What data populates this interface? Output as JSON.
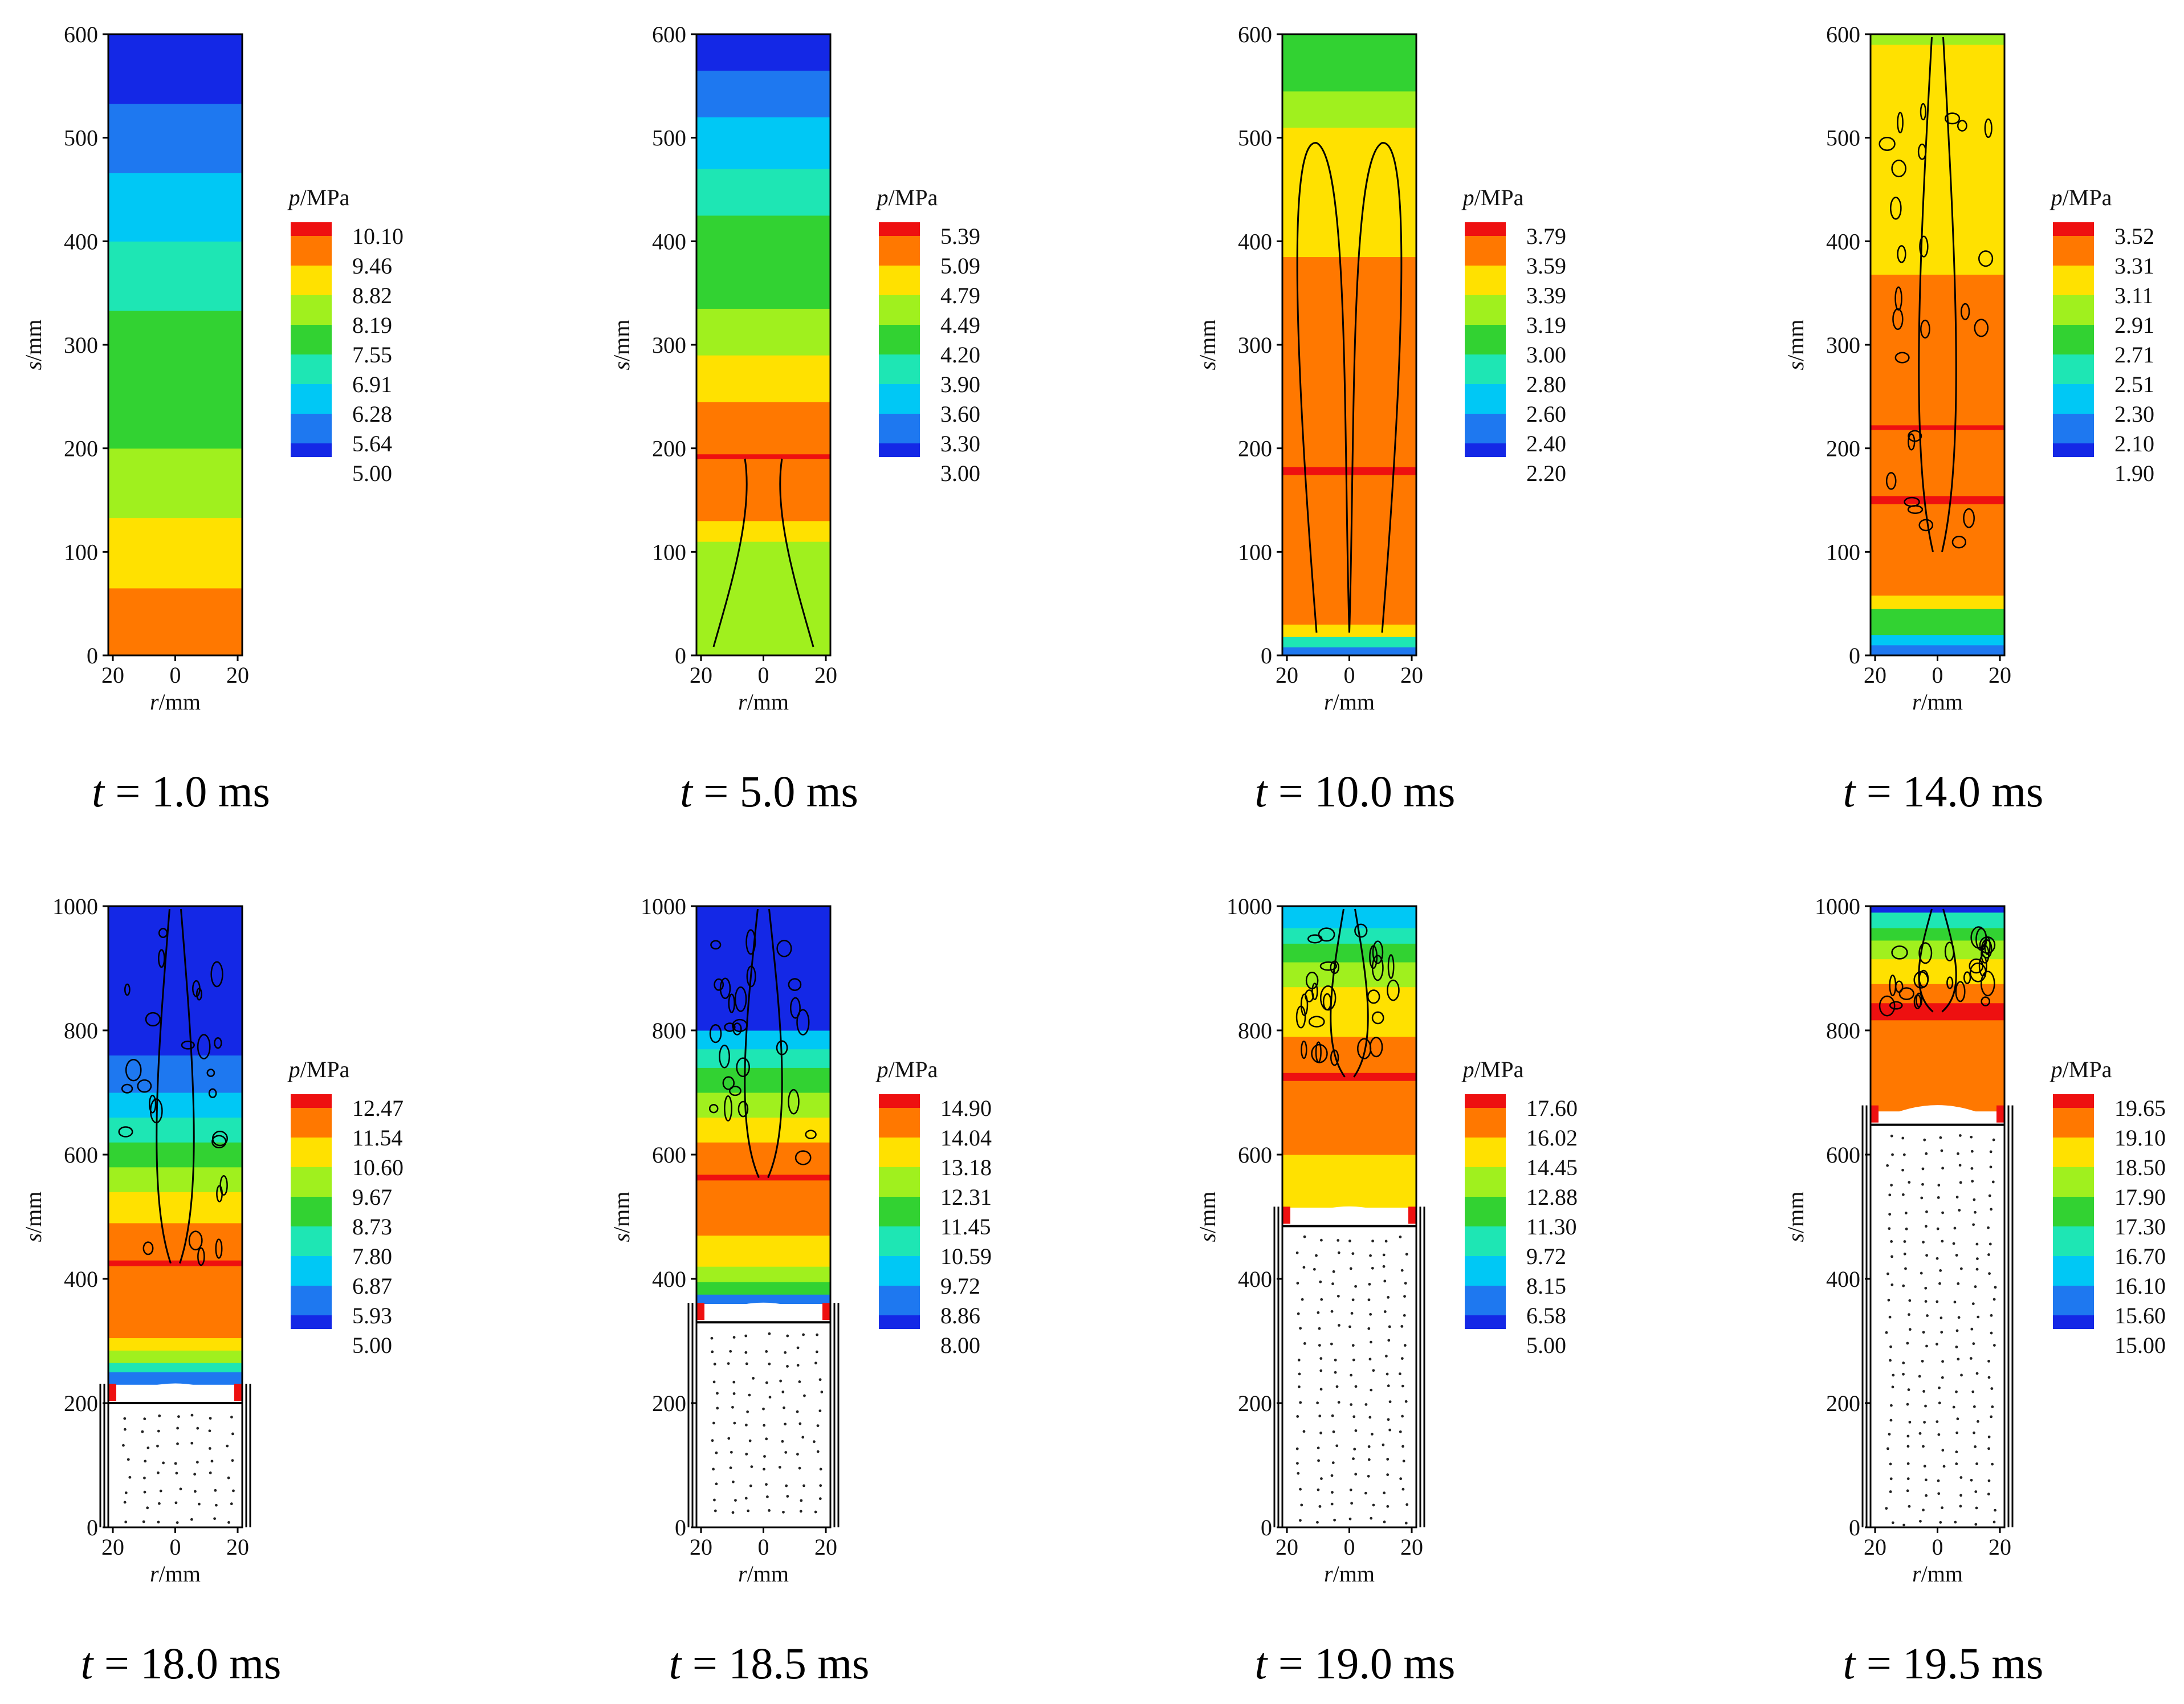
{
  "colors": {
    "legend_levels": [
      "#1428e6",
      "#1e78f0",
      "#00c8f5",
      "#1ee6b4",
      "#32d232",
      "#a0f01e",
      "#ffe100",
      "#ff7800",
      "#ee1010"
    ],
    "piston": "#ffffff",
    "border": "#000000",
    "contour_line": "#000000",
    "red_seal": "#ee1010"
  },
  "panels": [
    {
      "caption_italic": "t",
      "caption_rest": " = 1.0 ms",
      "legend_title_italic": "p",
      "legend_title_rest": "/MPa",
      "legend_values": [
        "10.10",
        "9.46",
        "8.82",
        "8.19",
        "7.55",
        "6.91",
        "6.28",
        "5.64",
        "5.00"
      ],
      "y_label_italic": "s",
      "y_label_rest": "/mm",
      "x_label_italic": "r",
      "x_label_rest": "/mm",
      "y_ticks": [
        "0",
        "100",
        "200",
        "300",
        "400",
        "500",
        "600"
      ],
      "x_ticks": [
        "20",
        "0",
        "20"
      ],
      "s_max": 600,
      "piston_top": 0,
      "bands": [
        {
          "from": 0,
          "to": 65,
          "level": 7
        },
        {
          "from": 65,
          "to": 133,
          "level": 6
        },
        {
          "from": 133,
          "to": 200,
          "level": 5
        },
        {
          "from": 200,
          "to": 266,
          "level": 4
        },
        {
          "from": 266,
          "to": 333,
          "level": 4
        },
        {
          "from": 333,
          "to": 400,
          "level": 3
        },
        {
          "from": 400,
          "to": 466,
          "level": 2
        },
        {
          "from": 466,
          "to": 533,
          "level": 1
        },
        {
          "from": 533,
          "to": 600,
          "level": 0
        }
      ],
      "hot_bands": []
    },
    {
      "caption_italic": "t",
      "caption_rest": " = 5.0 ms",
      "legend_title_italic": "p",
      "legend_title_rest": "/MPa",
      "legend_values": [
        "5.39",
        "5.09",
        "4.79",
        "4.49",
        "4.20",
        "3.90",
        "3.60",
        "3.30",
        "3.00"
      ],
      "y_label_italic": "s",
      "y_label_rest": "/mm",
      "x_label_italic": "r",
      "x_label_rest": "/mm",
      "y_ticks": [
        "0",
        "100",
        "200",
        "300",
        "400",
        "500",
        "600"
      ],
      "x_ticks": [
        "20",
        "0",
        "20"
      ],
      "s_max": 600,
      "piston_top": 0,
      "bands": [
        {
          "from": 0,
          "to": 110,
          "level": 5
        },
        {
          "from": 110,
          "to": 130,
          "level": 6
        },
        {
          "from": 130,
          "to": 245,
          "level": 7
        },
        {
          "from": 245,
          "to": 290,
          "level": 6
        },
        {
          "from": 290,
          "to": 335,
          "level": 5
        },
        {
          "from": 335,
          "to": 380,
          "level": 4
        },
        {
          "from": 380,
          "to": 425,
          "level": 4
        },
        {
          "from": 425,
          "to": 470,
          "level": 3
        },
        {
          "from": 470,
          "to": 520,
          "level": 2
        },
        {
          "from": 520,
          "to": 565,
          "level": 1
        },
        {
          "from": 565,
          "to": 600,
          "level": 0
        }
      ],
      "hot_bands": [
        {
          "at": 192,
          "h": 8
        }
      ]
    },
    {
      "caption_italic": "t",
      "caption_rest": " = 10.0 ms",
      "legend_title_italic": "p",
      "legend_title_rest": "/MPa",
      "legend_values": [
        "3.79",
        "3.59",
        "3.39",
        "3.19",
        "3.00",
        "2.80",
        "2.60",
        "2.40",
        "2.20"
      ],
      "y_label_italic": "s",
      "y_label_rest": "/mm",
      "x_label_italic": "r",
      "x_label_rest": "/mm",
      "y_ticks": [
        "0",
        "100",
        "200",
        "300",
        "400",
        "500",
        "600"
      ],
      "x_ticks": [
        "20",
        "0",
        "20"
      ],
      "s_max": 600,
      "piston_top": 0,
      "bands": [
        {
          "from": 0,
          "to": 8,
          "level": 1
        },
        {
          "from": 8,
          "to": 18,
          "level": 3
        },
        {
          "from": 18,
          "to": 30,
          "level": 6
        },
        {
          "from": 30,
          "to": 385,
          "level": 7
        },
        {
          "from": 385,
          "to": 510,
          "level": 6
        },
        {
          "from": 510,
          "to": 545,
          "level": 5
        },
        {
          "from": 545,
          "to": 575,
          "level": 4
        },
        {
          "from": 575,
          "to": 600,
          "level": 4
        }
      ],
      "hot_bands": [
        {
          "at": 178,
          "h": 14
        }
      ]
    },
    {
      "caption_italic": "t",
      "caption_rest": " = 14.0 ms",
      "legend_title_italic": "p",
      "legend_title_rest": "/MPa",
      "legend_values": [
        "3.52",
        "3.31",
        "3.11",
        "2.91",
        "2.71",
        "2.51",
        "2.30",
        "2.10",
        "1.90"
      ],
      "y_label_italic": "s",
      "y_label_rest": "/mm",
      "x_label_italic": "r",
      "x_label_rest": "/mm",
      "y_ticks": [
        "0",
        "100",
        "200",
        "300",
        "400",
        "500",
        "600"
      ],
      "x_ticks": [
        "20",
        "0",
        "20"
      ],
      "s_max": 600,
      "piston_top": 0,
      "bands": [
        {
          "from": 0,
          "to": 10,
          "level": 1
        },
        {
          "from": 10,
          "to": 20,
          "level": 2
        },
        {
          "from": 20,
          "to": 45,
          "level": 4
        },
        {
          "from": 45,
          "to": 58,
          "level": 6
        },
        {
          "from": 58,
          "to": 368,
          "level": 7
        },
        {
          "from": 368,
          "to": 590,
          "level": 6
        },
        {
          "from": 590,
          "to": 600,
          "level": 5
        }
      ],
      "hot_bands": [
        {
          "at": 150,
          "h": 14
        },
        {
          "at": 220,
          "h": 8
        }
      ]
    },
    {
      "caption_italic": "t",
      "caption_rest": " = 18.0 ms",
      "legend_title_italic": "p",
      "legend_title_rest": "/MPa",
      "legend_values": [
        "12.47",
        "11.54",
        "10.60",
        "9.67",
        "8.73",
        "7.80",
        "6.87",
        "5.93",
        "5.00"
      ],
      "y_label_italic": "s",
      "y_label_rest": "/mm",
      "x_label_italic": "r",
      "x_label_rest": "/mm",
      "y_ticks": [
        "0",
        "200",
        "400",
        "600",
        "800",
        "1000"
      ],
      "x_ticks": [
        "20",
        "0",
        "20"
      ],
      "s_max": 1000,
      "piston_top": 200,
      "bands": [
        {
          "from": 230,
          "to": 250,
          "level": 1
        },
        {
          "from": 250,
          "to": 265,
          "level": 3
        },
        {
          "from": 265,
          "to": 285,
          "level": 5
        },
        {
          "from": 285,
          "to": 305,
          "level": 6
        },
        {
          "from": 305,
          "to": 420,
          "level": 7
        },
        {
          "from": 420,
          "to": 490,
          "level": 7
        },
        {
          "from": 490,
          "to": 540,
          "level": 6
        },
        {
          "from": 540,
          "to": 580,
          "level": 5
        },
        {
          "from": 580,
          "to": 620,
          "level": 4
        },
        {
          "from": 620,
          "to": 660,
          "level": 3
        },
        {
          "from": 660,
          "to": 700,
          "level": 2
        },
        {
          "from": 700,
          "to": 760,
          "level": 1
        },
        {
          "from": 760,
          "to": 1000,
          "level": 0
        }
      ],
      "hot_bands": [
        {
          "at": 425,
          "h": 10
        }
      ]
    },
    {
      "caption_italic": "t",
      "caption_rest": " = 18.5 ms",
      "legend_title_italic": "p",
      "legend_title_rest": "/MPa",
      "legend_values": [
        "14.90",
        "14.04",
        "13.18",
        "12.31",
        "11.45",
        "10.59",
        "9.72",
        "8.86",
        "8.00"
      ],
      "y_label_italic": "s",
      "y_label_rest": "/mm",
      "x_label_italic": "r",
      "x_label_rest": "/mm",
      "y_ticks": [
        "0",
        "200",
        "400",
        "600",
        "800",
        "1000"
      ],
      "x_ticks": [
        "20",
        "0",
        "20"
      ],
      "s_max": 1000,
      "piston_top": 330,
      "bands": [
        {
          "from": 360,
          "to": 375,
          "level": 1
        },
        {
          "from": 375,
          "to": 395,
          "level": 4
        },
        {
          "from": 395,
          "to": 420,
          "level": 5
        },
        {
          "from": 420,
          "to": 470,
          "level": 6
        },
        {
          "from": 470,
          "to": 560,
          "level": 7
        },
        {
          "from": 560,
          "to": 620,
          "level": 7
        },
        {
          "from": 620,
          "to": 660,
          "level": 6
        },
        {
          "from": 660,
          "to": 700,
          "level": 5
        },
        {
          "from": 700,
          "to": 740,
          "level": 4
        },
        {
          "from": 740,
          "to": 770,
          "level": 3
        },
        {
          "from": 770,
          "to": 800,
          "level": 2
        },
        {
          "from": 800,
          "to": 1000,
          "level": 0
        }
      ],
      "hot_bands": [
        {
          "at": 563,
          "h": 10
        }
      ]
    },
    {
      "caption_italic": "t",
      "caption_rest": " = 19.0 ms",
      "legend_title_italic": "p",
      "legend_title_rest": "/MPa",
      "legend_values": [
        "17.60",
        "16.02",
        "14.45",
        "12.88",
        "11.30",
        "9.72",
        "8.15",
        "6.58",
        "5.00"
      ],
      "y_label_italic": "s",
      "y_label_rest": "/mm",
      "x_label_italic": "r",
      "x_label_rest": "/mm",
      "y_ticks": [
        "0",
        "200",
        "400",
        "600",
        "800",
        "1000"
      ],
      "x_ticks": [
        "20",
        "0",
        "20"
      ],
      "s_max": 1000,
      "piston_top": 485,
      "bands": [
        {
          "from": 515,
          "to": 600,
          "level": 6
        },
        {
          "from": 600,
          "to": 720,
          "level": 7
        },
        {
          "from": 720,
          "to": 790,
          "level": 7
        },
        {
          "from": 790,
          "to": 870,
          "level": 6
        },
        {
          "from": 870,
          "to": 910,
          "level": 5
        },
        {
          "from": 910,
          "to": 940,
          "level": 4
        },
        {
          "from": 940,
          "to": 965,
          "level": 3
        },
        {
          "from": 965,
          "to": 1000,
          "level": 2
        }
      ],
      "hot_bands": [
        {
          "at": 725,
          "h": 14
        }
      ]
    },
    {
      "caption_italic": "t",
      "caption_rest": " = 19.5 ms",
      "legend_title_italic": "p",
      "legend_title_rest": "/MPa",
      "legend_values": [
        "19.65",
        "19.10",
        "18.50",
        "17.90",
        "17.30",
        "16.70",
        "16.10",
        "15.60",
        "15.00"
      ],
      "y_label_italic": "s",
      "y_label_rest": "/mm",
      "x_label_italic": "r",
      "x_label_rest": "/mm",
      "y_ticks": [
        "0",
        "200",
        "400",
        "600",
        "800",
        "1000"
      ],
      "x_ticks": [
        "20",
        "0",
        "20"
      ],
      "s_max": 1000,
      "piston_top": 648,
      "bands": [
        {
          "from": 670,
          "to": 820,
          "level": 7
        },
        {
          "from": 820,
          "to": 875,
          "level": 7
        },
        {
          "from": 875,
          "to": 915,
          "level": 6
        },
        {
          "from": 915,
          "to": 945,
          "level": 5
        },
        {
          "from": 945,
          "to": 965,
          "level": 4
        },
        {
          "from": 965,
          "to": 990,
          "level": 3
        },
        {
          "from": 990,
          "to": 1000,
          "level": 0
        }
      ],
      "hot_bands": [
        {
          "at": 830,
          "h": 30
        }
      ]
    }
  ]
}
